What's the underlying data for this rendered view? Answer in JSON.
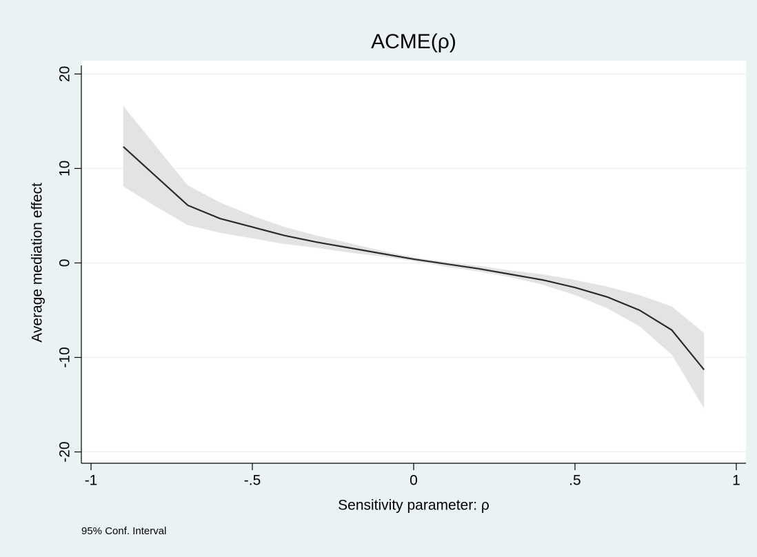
{
  "chart_data": {
    "type": "line",
    "title": "ACME(ρ)",
    "x_label": "Sensitivity parameter: ρ",
    "y_label": "Average mediation effect",
    "note": "95% Conf. Interval",
    "x": [
      -0.9,
      -0.8,
      -0.7,
      -0.6,
      -0.5,
      -0.4,
      -0.3,
      -0.2,
      -0.1,
      0,
      0.1,
      0.2,
      0.3,
      0.4,
      0.5,
      0.6,
      0.7,
      0.8,
      0.9
    ],
    "values": [
      12.3,
      9.2,
      6.1,
      4.7,
      3.8,
      2.9,
      2.2,
      1.6,
      1.0,
      0.4,
      -0.1,
      -0.6,
      -1.2,
      -1.8,
      -2.6,
      -3.6,
      -5.0,
      -7.1,
      -11.3
    ],
    "ci_upper": [
      16.6,
      12.4,
      8.2,
      6.4,
      5.0,
      3.8,
      2.9,
      2.1,
      1.3,
      0.6,
      0.1,
      -0.3,
      -0.8,
      -1.2,
      -1.8,
      -2.5,
      -3.4,
      -4.6,
      -7.4
    ],
    "ci_lower": [
      8.1,
      6.0,
      4.0,
      3.2,
      2.6,
      2.0,
      1.6,
      1.1,
      0.7,
      0.2,
      -0.4,
      -0.9,
      -1.5,
      -2.3,
      -3.4,
      -4.8,
      -6.7,
      -9.7,
      -15.4
    ],
    "line_color": "#2b2b2b",
    "ci_color": "#e3e3e3",
    "xlim": [
      -1.03,
      1.03
    ],
    "ylim": [
      -21.2,
      20.9
    ],
    "xticks": [
      -1,
      {
        "value": -0.5,
        "label": "-.5"
      },
      0,
      {
        "value": 0.5,
        "label": ".5"
      },
      1
    ],
    "yticks": [
      -20,
      -10,
      0,
      10,
      20
    ],
    "grid": true
  }
}
